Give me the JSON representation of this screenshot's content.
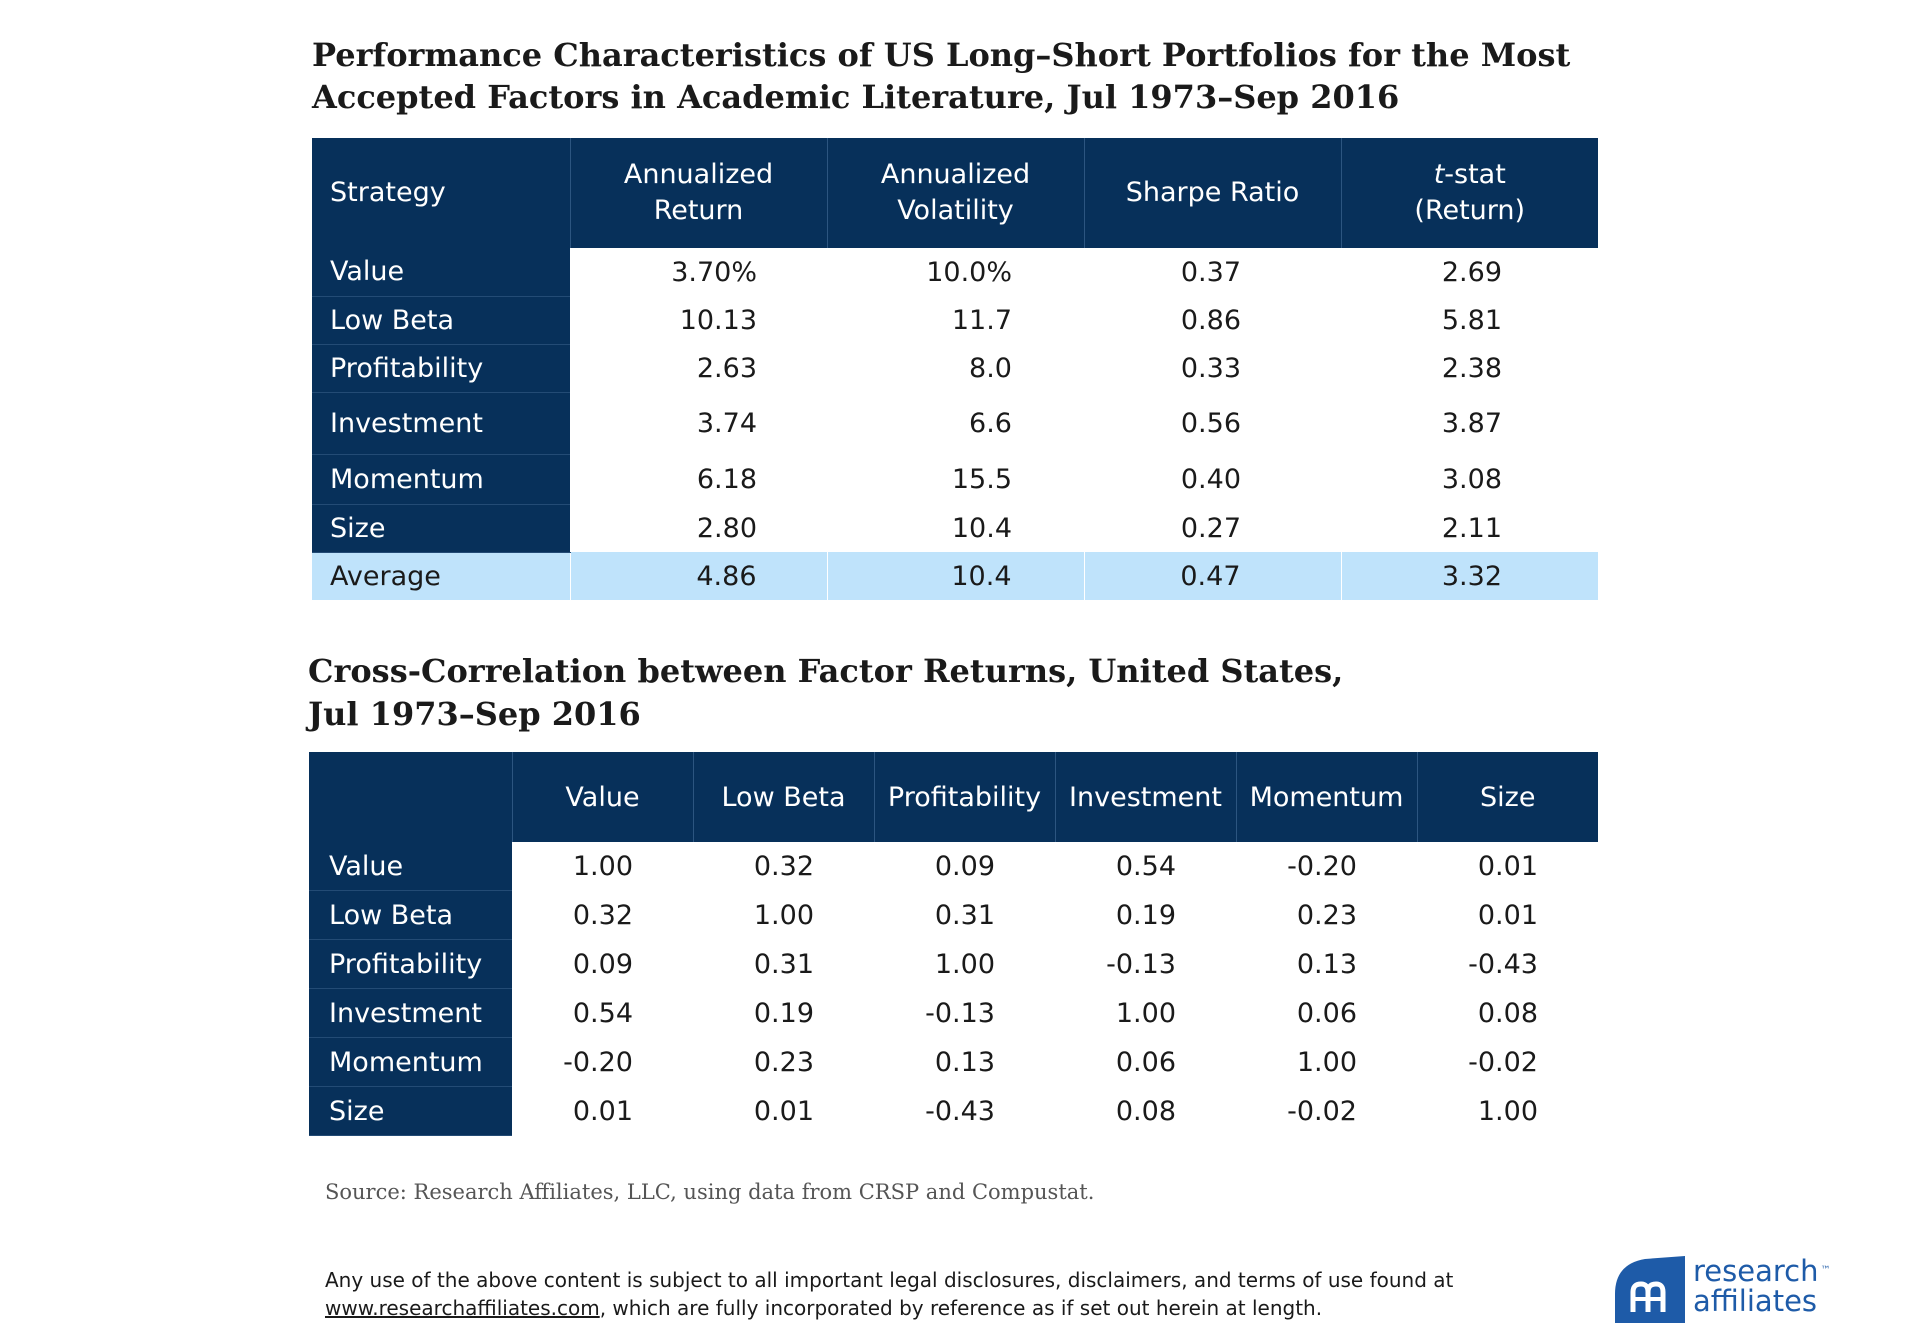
{
  "table1": {
    "title_line1": "Performance Characteristics of US Long–Short Portfolios for the Most",
    "title_line2": "Accepted Factors in Academic Literature, Jul 1973–Sep 2016",
    "headers": {
      "strategy": "Strategy",
      "return_line1": "Annualized",
      "return_line2": "Return",
      "vol_line1": "Annualized",
      "vol_line2": "Volatility",
      "sharpe": "Sharpe Ratio",
      "tstat_italic": "t",
      "tstat_rest": "-stat",
      "tstat_line2": "(Return)"
    },
    "rows": [
      {
        "strategy": "Value",
        "return": "3.70%",
        "volatility": "10.0%",
        "sharpe": "0.37",
        "tstat": "2.69"
      },
      {
        "strategy": "Low Beta",
        "return": "10.13",
        "volatility": "11.7",
        "sharpe": "0.86",
        "tstat": "5.81"
      },
      {
        "strategy": "Profitability",
        "return": "2.63",
        "volatility": "8.0",
        "sharpe": "0.33",
        "tstat": "2.38"
      },
      {
        "strategy": "Investment",
        "return": "3.74",
        "volatility": "6.6",
        "sharpe": "0.56",
        "tstat": "3.87"
      },
      {
        "strategy": "Momentum",
        "return": "6.18",
        "volatility": "15.5",
        "sharpe": "0.40",
        "tstat": "3.08"
      },
      {
        "strategy": "Size",
        "return": "2.80",
        "volatility": "10.4",
        "sharpe": "0.27",
        "tstat": "2.11"
      }
    ],
    "average": {
      "strategy": "Average",
      "return": "4.86",
      "volatility": "10.4",
      "sharpe": "0.47",
      "tstat": "3.32"
    }
  },
  "table2": {
    "title_line1": "Cross-Correlation between Factor Returns, United States,",
    "title_line2": "Jul 1973–Sep 2016",
    "columns": [
      "Value",
      "Low Beta",
      "Profitability",
      "Investment",
      "Momentum",
      "Size"
    ],
    "rows": [
      {
        "label": "Value",
        "values": [
          "1.00",
          "0.32",
          "0.09",
          "0.54",
          "-0.20",
          "0.01"
        ]
      },
      {
        "label": "Low Beta",
        "values": [
          "0.32",
          "1.00",
          "0.31",
          "0.19",
          "0.23",
          "0.01"
        ]
      },
      {
        "label": "Profitability",
        "values": [
          "0.09",
          "0.31",
          "1.00",
          "-0.13",
          "0.13",
          "-0.43"
        ]
      },
      {
        "label": "Investment",
        "values": [
          "0.54",
          "0.19",
          "-0.13",
          "1.00",
          "0.06",
          "0.08"
        ]
      },
      {
        "label": "Momentum",
        "values": [
          "-0.20",
          "0.23",
          "0.13",
          "0.06",
          "1.00",
          "-0.02"
        ]
      },
      {
        "label": "Size",
        "values": [
          "0.01",
          "0.01",
          "-0.43",
          "0.08",
          "-0.02",
          "1.00"
        ]
      }
    ]
  },
  "source": "Source: Research Affiliates, LLC, using data from CRSP and Compustat.",
  "disclaimer": {
    "line1": "Any use of the above content is subject to all important legal disclosures, disclaimers, and terms of use found at",
    "link": "www.researchaffiliates.com",
    "line2_rest": ", which are fully incorporated by reference as if set out herein at length."
  },
  "logo": {
    "line1": "research",
    "tm": "™",
    "line2": "affiliates",
    "icon": "research-affiliates-logo-icon"
  },
  "colors": {
    "header_navy": "#07305a",
    "average_row": "#bfe3fb",
    "logo_blue": "#1e5ba8"
  }
}
